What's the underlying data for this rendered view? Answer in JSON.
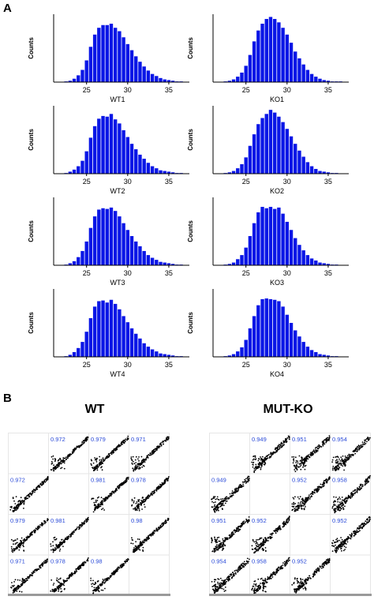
{
  "panels": {
    "a_label": "A",
    "b_label": "B"
  },
  "colors": {
    "bar": "#0a16e6",
    "corr_text": "#2b4bd8",
    "point": "#000000"
  },
  "chart_data": [
    {
      "type": "bar",
      "title": "WT1",
      "ylabel": "Counts",
      "x_ticks": [
        25,
        30,
        35
      ],
      "xlim": [
        21,
        37.5
      ],
      "bins": [
        22.5,
        23,
        23.5,
        24,
        24.5,
        25,
        25.5,
        26,
        26.5,
        27,
        27.5,
        28,
        28.5,
        29,
        29.5,
        30,
        30.5,
        31,
        31.5,
        32,
        32.5,
        33,
        33.5,
        34,
        34.5,
        35,
        35.5,
        36,
        36.5,
        37
      ],
      "values": [
        1,
        2,
        5,
        10,
        18,
        32,
        52,
        70,
        80,
        84,
        84,
        86,
        80,
        75,
        66,
        56,
        47,
        38,
        30,
        23,
        17,
        12,
        9,
        6,
        4,
        3,
        2,
        1,
        1,
        0
      ]
    },
    {
      "type": "bar",
      "title": "KO1",
      "ylabel": "Counts",
      "x_ticks": [
        25,
        30,
        35
      ],
      "xlim": [
        21,
        37.5
      ],
      "bins": [
        22.5,
        23,
        23.5,
        24,
        24.5,
        25,
        25.5,
        26,
        26.5,
        27,
        27.5,
        28,
        28.5,
        29,
        29.5,
        30,
        30.5,
        31,
        31.5,
        32,
        32.5,
        33,
        33.5,
        34,
        34.5,
        35,
        35.5,
        36,
        36.5,
        37
      ],
      "values": [
        1,
        2,
        4,
        8,
        14,
        24,
        40,
        60,
        76,
        86,
        93,
        96,
        93,
        88,
        80,
        70,
        58,
        45,
        35,
        26,
        18,
        12,
        8,
        5,
        3,
        2,
        1,
        1,
        1,
        0
      ]
    },
    {
      "type": "bar",
      "title": "WT2",
      "ylabel": "Counts",
      "x_ticks": [
        25,
        30,
        35
      ],
      "xlim": [
        21,
        37.5
      ],
      "bins": [
        22.5,
        23,
        23.5,
        24,
        24.5,
        25,
        25.5,
        26,
        26.5,
        27,
        27.5,
        28,
        28.5,
        29,
        29.5,
        30,
        30.5,
        31,
        31.5,
        32,
        32.5,
        33,
        33.5,
        34,
        34.5,
        35,
        35.5,
        36,
        36.5,
        37
      ],
      "values": [
        1,
        3,
        6,
        11,
        19,
        33,
        53,
        70,
        81,
        85,
        84,
        88,
        80,
        74,
        64,
        54,
        44,
        36,
        28,
        22,
        16,
        11,
        8,
        5,
        4,
        3,
        2,
        1,
        1,
        0
      ]
    },
    {
      "type": "bar",
      "title": "KO2",
      "ylabel": "Counts",
      "x_ticks": [
        25,
        30,
        35
      ],
      "xlim": [
        21,
        37.5
      ],
      "bins": [
        22.5,
        23,
        23.5,
        24,
        24.5,
        25,
        25.5,
        26,
        26.5,
        27,
        27.5,
        28,
        28.5,
        29,
        29.5,
        30,
        30.5,
        31,
        31.5,
        32,
        32.5,
        33,
        33.5,
        34,
        34.5,
        35,
        35.5,
        36,
        36.5,
        37
      ],
      "values": [
        1,
        2,
        4,
        8,
        14,
        24,
        41,
        58,
        73,
        82,
        88,
        94,
        90,
        84,
        76,
        66,
        55,
        44,
        34,
        25,
        17,
        11,
        7,
        4,
        3,
        2,
        1,
        1,
        0,
        0
      ]
    },
    {
      "type": "bar",
      "title": "WT3",
      "ylabel": "Counts",
      "x_ticks": [
        25,
        30,
        35
      ],
      "xlim": [
        21,
        37.5
      ],
      "bins": [
        22.5,
        23,
        23.5,
        24,
        24.5,
        25,
        25.5,
        26,
        26.5,
        27,
        27.5,
        28,
        28.5,
        29,
        29.5,
        30,
        30.5,
        31,
        31.5,
        32,
        32.5,
        33,
        33.5,
        34,
        34.5,
        35,
        35.5,
        36,
        36.5,
        37
      ],
      "values": [
        1,
        3,
        6,
        12,
        21,
        35,
        55,
        72,
        82,
        84,
        83,
        85,
        80,
        72,
        62,
        52,
        43,
        35,
        28,
        21,
        15,
        11,
        8,
        5,
        4,
        3,
        2,
        1,
        1,
        0
      ]
    },
    {
      "type": "bar",
      "title": "KO3",
      "ylabel": "Counts",
      "x_ticks": [
        25,
        30,
        35
      ],
      "xlim": [
        21,
        37.5
      ],
      "bins": [
        22.5,
        23,
        23.5,
        24,
        24.5,
        25,
        25.5,
        26,
        26.5,
        27,
        27.5,
        28,
        28.5,
        29,
        29.5,
        30,
        30.5,
        31,
        31.5,
        32,
        32.5,
        33,
        33.5,
        34,
        34.5,
        35,
        35.5,
        36,
        36.5,
        37
      ],
      "values": [
        1,
        2,
        4,
        9,
        15,
        26,
        43,
        62,
        78,
        86,
        84,
        86,
        83,
        85,
        76,
        64,
        52,
        40,
        30,
        22,
        15,
        10,
        7,
        4,
        3,
        2,
        1,
        1,
        0,
        0
      ]
    },
    {
      "type": "bar",
      "title": "WT4",
      "ylabel": "Counts",
      "x_ticks": [
        25,
        30,
        35
      ],
      "xlim": [
        21,
        37.5
      ],
      "bins": [
        22.5,
        23,
        23.5,
        24,
        24.5,
        25,
        25.5,
        26,
        26.5,
        27,
        27.5,
        28,
        28.5,
        29,
        29.5,
        30,
        30.5,
        31,
        31.5,
        32,
        32.5,
        33,
        33.5,
        34,
        34.5,
        35,
        35.5,
        36,
        36.5,
        37
      ],
      "values": [
        1,
        3,
        7,
        13,
        22,
        37,
        57,
        74,
        82,
        83,
        80,
        84,
        78,
        70,
        60,
        51,
        42,
        34,
        27,
        20,
        15,
        11,
        8,
        5,
        4,
        3,
        2,
        1,
        1,
        0
      ]
    },
    {
      "type": "bar",
      "title": "KO4",
      "ylabel": "Counts",
      "x_ticks": [
        25,
        30,
        35
      ],
      "xlim": [
        21,
        37.5
      ],
      "bins": [
        22.5,
        23,
        23.5,
        24,
        24.5,
        25,
        25.5,
        26,
        26.5,
        27,
        27.5,
        28,
        28.5,
        29,
        29.5,
        30,
        30.5,
        31,
        31.5,
        32,
        32.5,
        33,
        33.5,
        34,
        34.5,
        35,
        35.5,
        36,
        36.5,
        37
      ],
      "values": [
        1,
        2,
        4,
        8,
        14,
        25,
        42,
        60,
        76,
        85,
        86,
        85,
        84,
        82,
        74,
        62,
        50,
        39,
        30,
        22,
        15,
        10,
        7,
        4,
        3,
        2,
        1,
        1,
        0,
        0
      ]
    },
    {
      "type": "scatter",
      "title": "WT",
      "samples": 4,
      "correlations": [
        [
          "",
          "0.972",
          "0.979",
          "0.971"
        ],
        [
          "0.972",
          "",
          "0.981",
          "0.978"
        ],
        [
          "0.979",
          "0.981",
          "",
          "0.98"
        ],
        [
          "0.971",
          "0.978",
          "0.98",
          ""
        ]
      ]
    },
    {
      "type": "scatter",
      "title": "MUT-KO",
      "samples": 4,
      "correlations": [
        [
          "",
          "0.949",
          "0.951",
          "0.954"
        ],
        [
          "0.949",
          "",
          "0.952",
          "0.958"
        ],
        [
          "0.951",
          "0.952",
          "",
          "0.952"
        ],
        [
          "0.954",
          "0.958",
          "0.952",
          ""
        ]
      ]
    }
  ]
}
